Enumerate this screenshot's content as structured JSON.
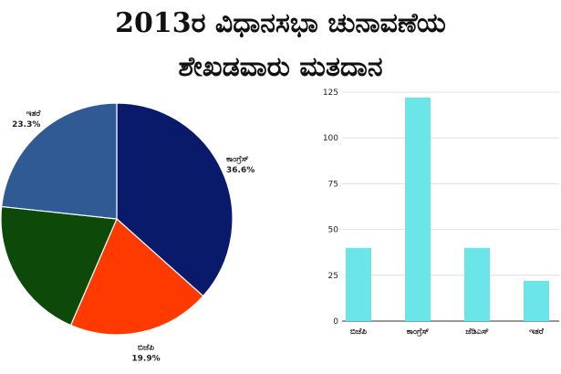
{
  "title": {
    "line1": "2013ರ ವಿಧಾನಸಭಾ ಚುನಾವಣೆಯ",
    "line2": "ಶೇಖಡವಾರು ಮತದಾನ"
  },
  "chart_data": [
    {
      "type": "pie",
      "slices": [
        {
          "label": "ಕಾಂಗ್ರೆಸ್",
          "value": 36.6,
          "value_label": "36.6%",
          "color": "#0a1a6b"
        },
        {
          "label": "ಬಿಜೆಪಿ",
          "value": 19.9,
          "value_label": "19.9%",
          "color": "#ff3a00"
        },
        {
          "label": "",
          "value": 20.2,
          "value_label": "",
          "color": "#0d4a0a"
        },
        {
          "label": "ಇತರೆ",
          "value": 23.3,
          "value_label": "23.3%",
          "color": "#2f5a94"
        }
      ]
    },
    {
      "type": "bar",
      "categories": [
        "ಬಿಜೆಪಿ",
        "ಕಾಂಗ್ರೆಸ್",
        "ಜೆಡಿಎಸ್",
        "ಇತರೆ"
      ],
      "values": [
        40,
        122,
        40,
        22
      ],
      "ylim": [
        0,
        125
      ],
      "yticks": [
        "0",
        "25",
        "50",
        "75",
        "100",
        "125"
      ],
      "bar_color": "#6ce5e8",
      "grid": true
    }
  ]
}
